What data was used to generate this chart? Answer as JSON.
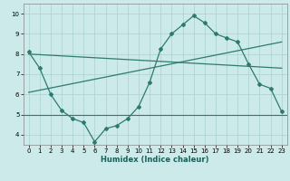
{
  "xlabel": "Humidex (Indice chaleur)",
  "background_color": "#cceaea",
  "grid_color": "#b0d4d4",
  "line_color": "#2d7b6e",
  "xlim": [
    -0.5,
    23.5
  ],
  "ylim": [
    3.5,
    10.5
  ],
  "xticks": [
    0,
    1,
    2,
    3,
    4,
    5,
    6,
    7,
    8,
    9,
    10,
    11,
    12,
    13,
    14,
    15,
    16,
    17,
    18,
    19,
    20,
    21,
    22,
    23
  ],
  "yticks": [
    4,
    5,
    6,
    7,
    8,
    9,
    10
  ],
  "line1_x": [
    0,
    1,
    2,
    3,
    4,
    5,
    6,
    7,
    8,
    9,
    10,
    11,
    12,
    13,
    14,
    15,
    16,
    17,
    18,
    19,
    20,
    21,
    22,
    23
  ],
  "line1_y": [
    8.1,
    7.3,
    6.0,
    5.2,
    4.8,
    4.6,
    3.65,
    4.3,
    4.45,
    4.8,
    5.4,
    6.6,
    8.25,
    9.0,
    9.45,
    9.9,
    9.55,
    9.0,
    8.8,
    8.6,
    7.5,
    6.5,
    6.3,
    5.15
  ],
  "line2_x": [
    0,
    23
  ],
  "line2_y": [
    8.0,
    7.3
  ],
  "line3_x": [
    0,
    23
  ],
  "line3_y": [
    6.1,
    8.6
  ],
  "hline_y": 5.0
}
